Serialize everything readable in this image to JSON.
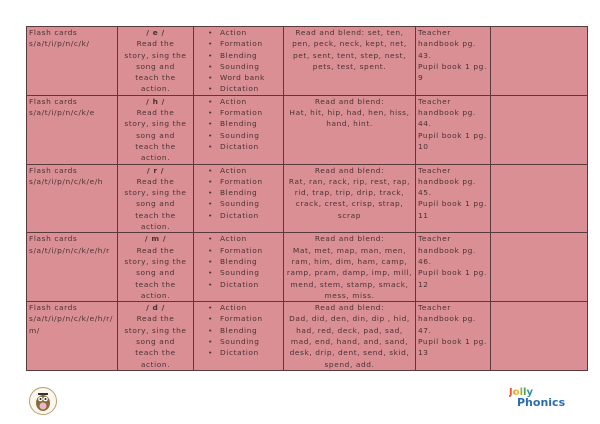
{
  "rows": [
    {
      "flash": "Flash cards",
      "letters": "s/a/t/i/p/n/c/k/",
      "sound": "/ e /",
      "instruction": "Read the story, sing the song and teach the action.",
      "activities": [
        "Action",
        "Formation",
        "Blending",
        "Sounding",
        "Word bank",
        "Dictation"
      ],
      "blend": "Read and blend: set, ten, pen, peck, neck, kept, net, pet, sent, tent, step, nest, pets, test, spent.",
      "teacher": "Teacher handbook pg. 43.",
      "pupil": "Pupil book 1 pg. 9"
    },
    {
      "flash": "Flash cards",
      "letters": "s/a/t/i/p/n/c/k/e",
      "sound": "/ h /",
      "instruction": "Read the story, sing the song and teach the action.",
      "activities": [
        "Action",
        "Formation",
        "Blending",
        "Sounding",
        "Dictation"
      ],
      "blend_title": "Read and blend:",
      "blend": "Hat, hit, hip, had, hen, hiss, hand, hint.",
      "teacher": "Teacher handbook pg. 44.",
      "pupil": "Pupil book 1 pg. 10"
    },
    {
      "flash": "Flash cards",
      "letters": "s/a/t/i/p/n/c/k/e/h",
      "sound": "/ r /",
      "instruction": "Read the story, sing the song and teach the action.",
      "activities": [
        "Action",
        "Formation",
        "Blending",
        "Sounding",
        "Dictation"
      ],
      "blend_title": "Read and blend:",
      "blend": "Rat, ran, rack, rip, rest, rap, rid, trap, trip, drip, track, crack, crest, crisp, strap, scrap",
      "teacher": "Teacher handbook pg. 45.",
      "pupil": "Pupil book 1 pg. 11"
    },
    {
      "flash": "Flash cards",
      "letters": "s/a/t/i/p/n/c/k/e/h/r",
      "sound": "/ m /",
      "instruction": "Read the story, sing the song and teach the action.",
      "activities": [
        "Action",
        "Formation",
        "Blending",
        "Sounding",
        "Dictation"
      ],
      "blend_title": "Read and blend:",
      "blend": "Mat, met, map, man, men, ram, him, dim, ham, camp, ramp, pram, damp, imp, mill, mend, stem, stamp, smack, mess, miss.",
      "teacher": "Teacher handbook pg. 46.",
      "pupil": "Pupil book 1 pg. 12"
    },
    {
      "flash": "Flash cards",
      "letters": "s/a/t/i/p/n/c/k/e/h/r/m/",
      "sound": "/ d /",
      "instruction": "Read the story, sing the song and teach the action.",
      "activities": [
        "Action",
        "Formation",
        "Blending",
        "Sounding",
        "Dictation"
      ],
      "blend_title": "Read and blend:",
      "blend": "Dad, did, den, din, dip , hid, had, red, deck, pad, sad, mad, end, hand, and, sand, desk, drip, dent, send, skid, spend, add.",
      "teacher": "Teacher handbook pg. 47.",
      "pupil": "Pupil book 1 pg. 13"
    }
  ],
  "footer": {
    "left_logo": "owl-mascot-logo",
    "right_logo_line1": "Jolly",
    "right_logo_line2": "Phonics"
  },
  "colors": {
    "cell": "#d98f94",
    "border": "#5a3a3d",
    "text": "#4a3234"
  }
}
